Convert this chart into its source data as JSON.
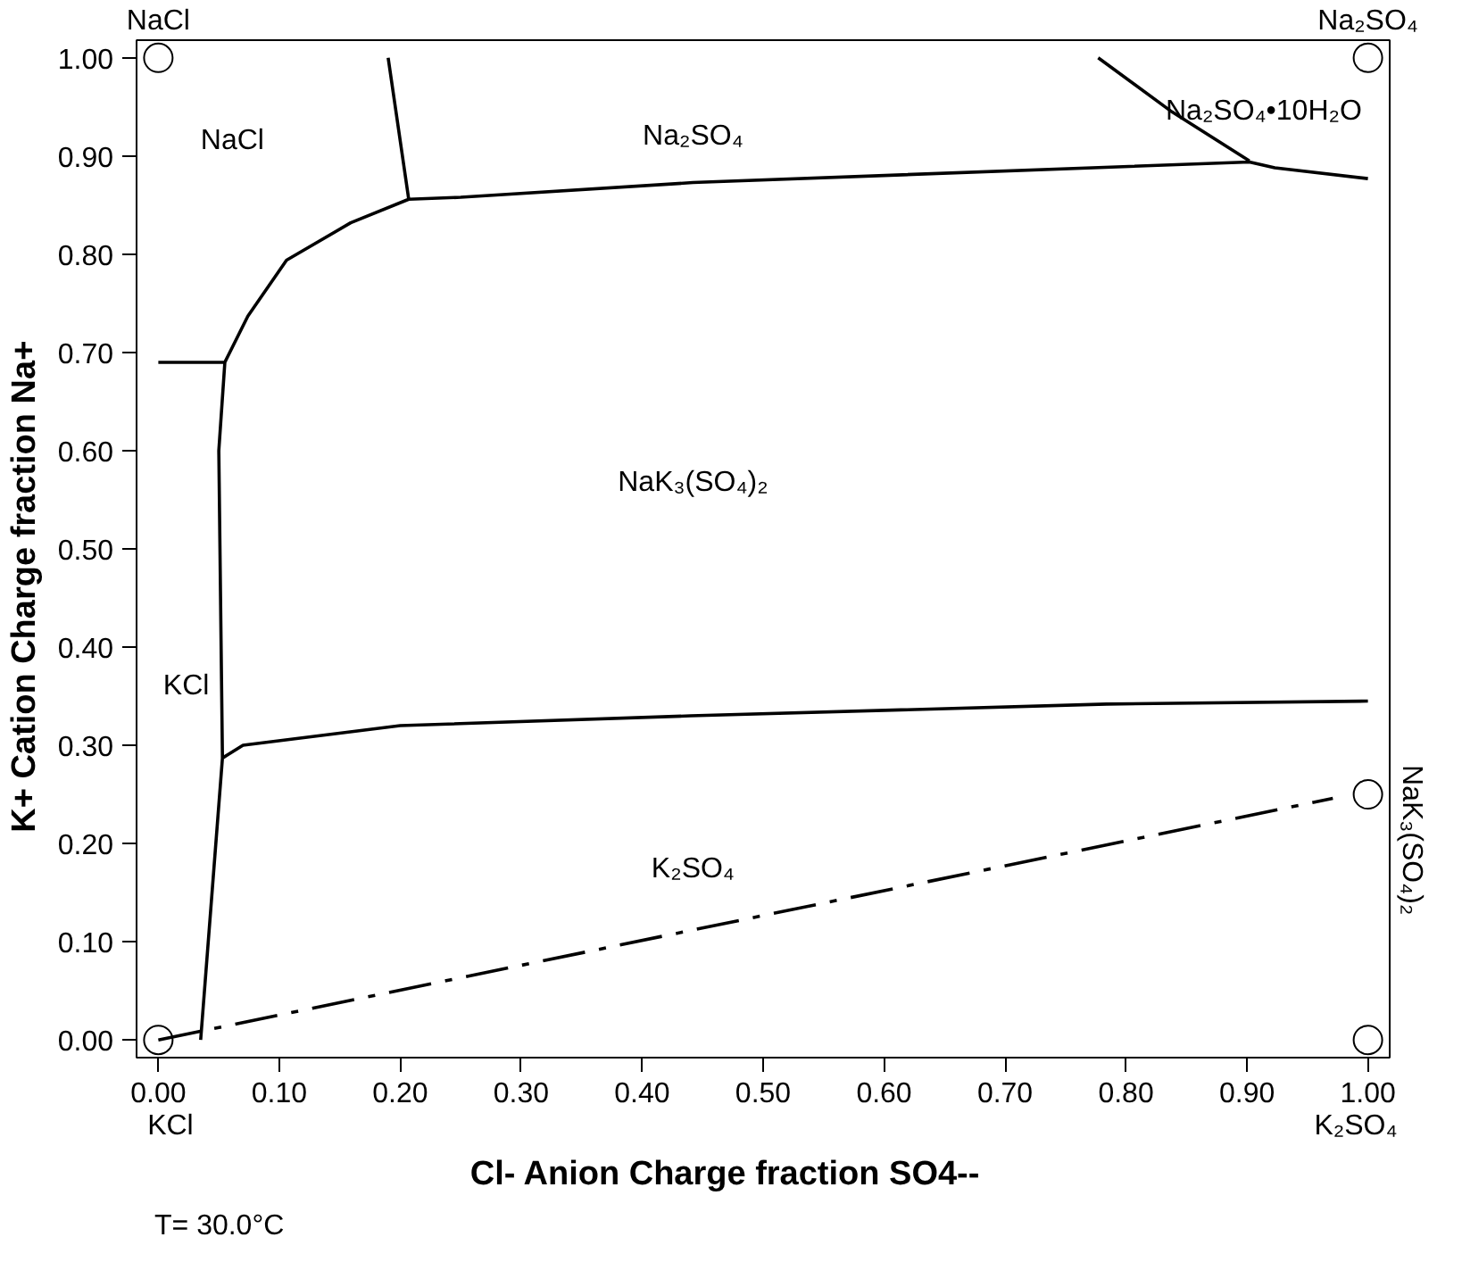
{
  "chart_data": {
    "type": "line",
    "xlabel": "Cl-     Anion Charge fraction     SO4--",
    "ylabel": "K+     Cation Charge fraction     Na+",
    "xlim": [
      0,
      1
    ],
    "ylim": [
      0,
      1
    ],
    "xticks": [
      {
        "value": 0,
        "label": "0.00"
      },
      {
        "value": 0.1,
        "label": "0.10"
      },
      {
        "value": 0.2,
        "label": "0.20"
      },
      {
        "value": 0.3,
        "label": "0.30"
      },
      {
        "value": 0.4,
        "label": "0.40"
      },
      {
        "value": 0.5,
        "label": "0.50"
      },
      {
        "value": 0.6,
        "label": "0.60"
      },
      {
        "value": 0.7,
        "label": "0.70"
      },
      {
        "value": 0.8,
        "label": "0.80"
      },
      {
        "value": 0.9,
        "label": "0.90"
      },
      {
        "value": 1,
        "label": "1.00"
      }
    ],
    "yticks": [
      {
        "value": 0,
        "label": "0.00"
      },
      {
        "value": 0.1,
        "label": "0.10"
      },
      {
        "value": 0.2,
        "label": "0.20"
      },
      {
        "value": 0.3,
        "label": "0.30"
      },
      {
        "value": 0.4,
        "label": "0.40"
      },
      {
        "value": 0.5,
        "label": "0.50"
      },
      {
        "value": 0.6,
        "label": "0.60"
      },
      {
        "value": 0.7,
        "label": "0.70"
      },
      {
        "value": 0.8,
        "label": "0.80"
      },
      {
        "value": 0.9,
        "label": "0.90"
      },
      {
        "value": 1,
        "label": "1.00"
      }
    ],
    "grid": false,
    "line_style": "solid",
    "series": [
      {
        "color": "#000000",
        "x": [
          0.19,
          0.207,
          null,
          0.207,
          0.159,
          0.106,
          0.074,
          0.055,
          0.05,
          0.053,
          0.035,
          null,
          0.0,
          0.055,
          null,
          0.053,
          0.07,
          0.2,
          0.44,
          0.784,
          1.0,
          null,
          0.207,
          0.25,
          0.442,
          0.902,
          0.923,
          1.0,
          null,
          0.777,
          0.838,
          0.902
        ],
        "values": [
          1.0,
          0.856,
          null,
          0.856,
          0.832,
          0.794,
          0.737,
          0.69,
          0.6,
          0.287,
          0.0,
          null,
          0.69,
          0.69,
          null,
          0.287,
          0.3,
          0.32,
          0.33,
          0.342,
          0.345,
          null,
          0.856,
          0.858,
          0.873,
          0.894,
          0.888,
          0.877,
          null,
          1.0,
          0.945,
          0.895
        ]
      },
      {
        "color": "#000000",
        "line_style": "dashdot",
        "x": [
          0.0,
          0.971
        ],
        "values": [
          0.0,
          0.246
        ]
      },
      {
        "type": "scatter",
        "marker": "circle",
        "color": "#000000",
        "x": [
          0,
          1,
          0,
          1,
          1
        ],
        "values": [
          1,
          1,
          0,
          0,
          0.25
        ]
      }
    ],
    "annotations": [
      "NaCl",
      "Na₂SO₄",
      "NaK₃(SO₄)₂",
      "KCl",
      "K₂SO₄",
      "NaCl",
      "Na₂SO₄",
      "Na₂SO₄•10H₂O",
      "NaK₃(SO₄)₂",
      "KCl",
      "K₂SO₄",
      "T=  30.0°C"
    ]
  }
}
